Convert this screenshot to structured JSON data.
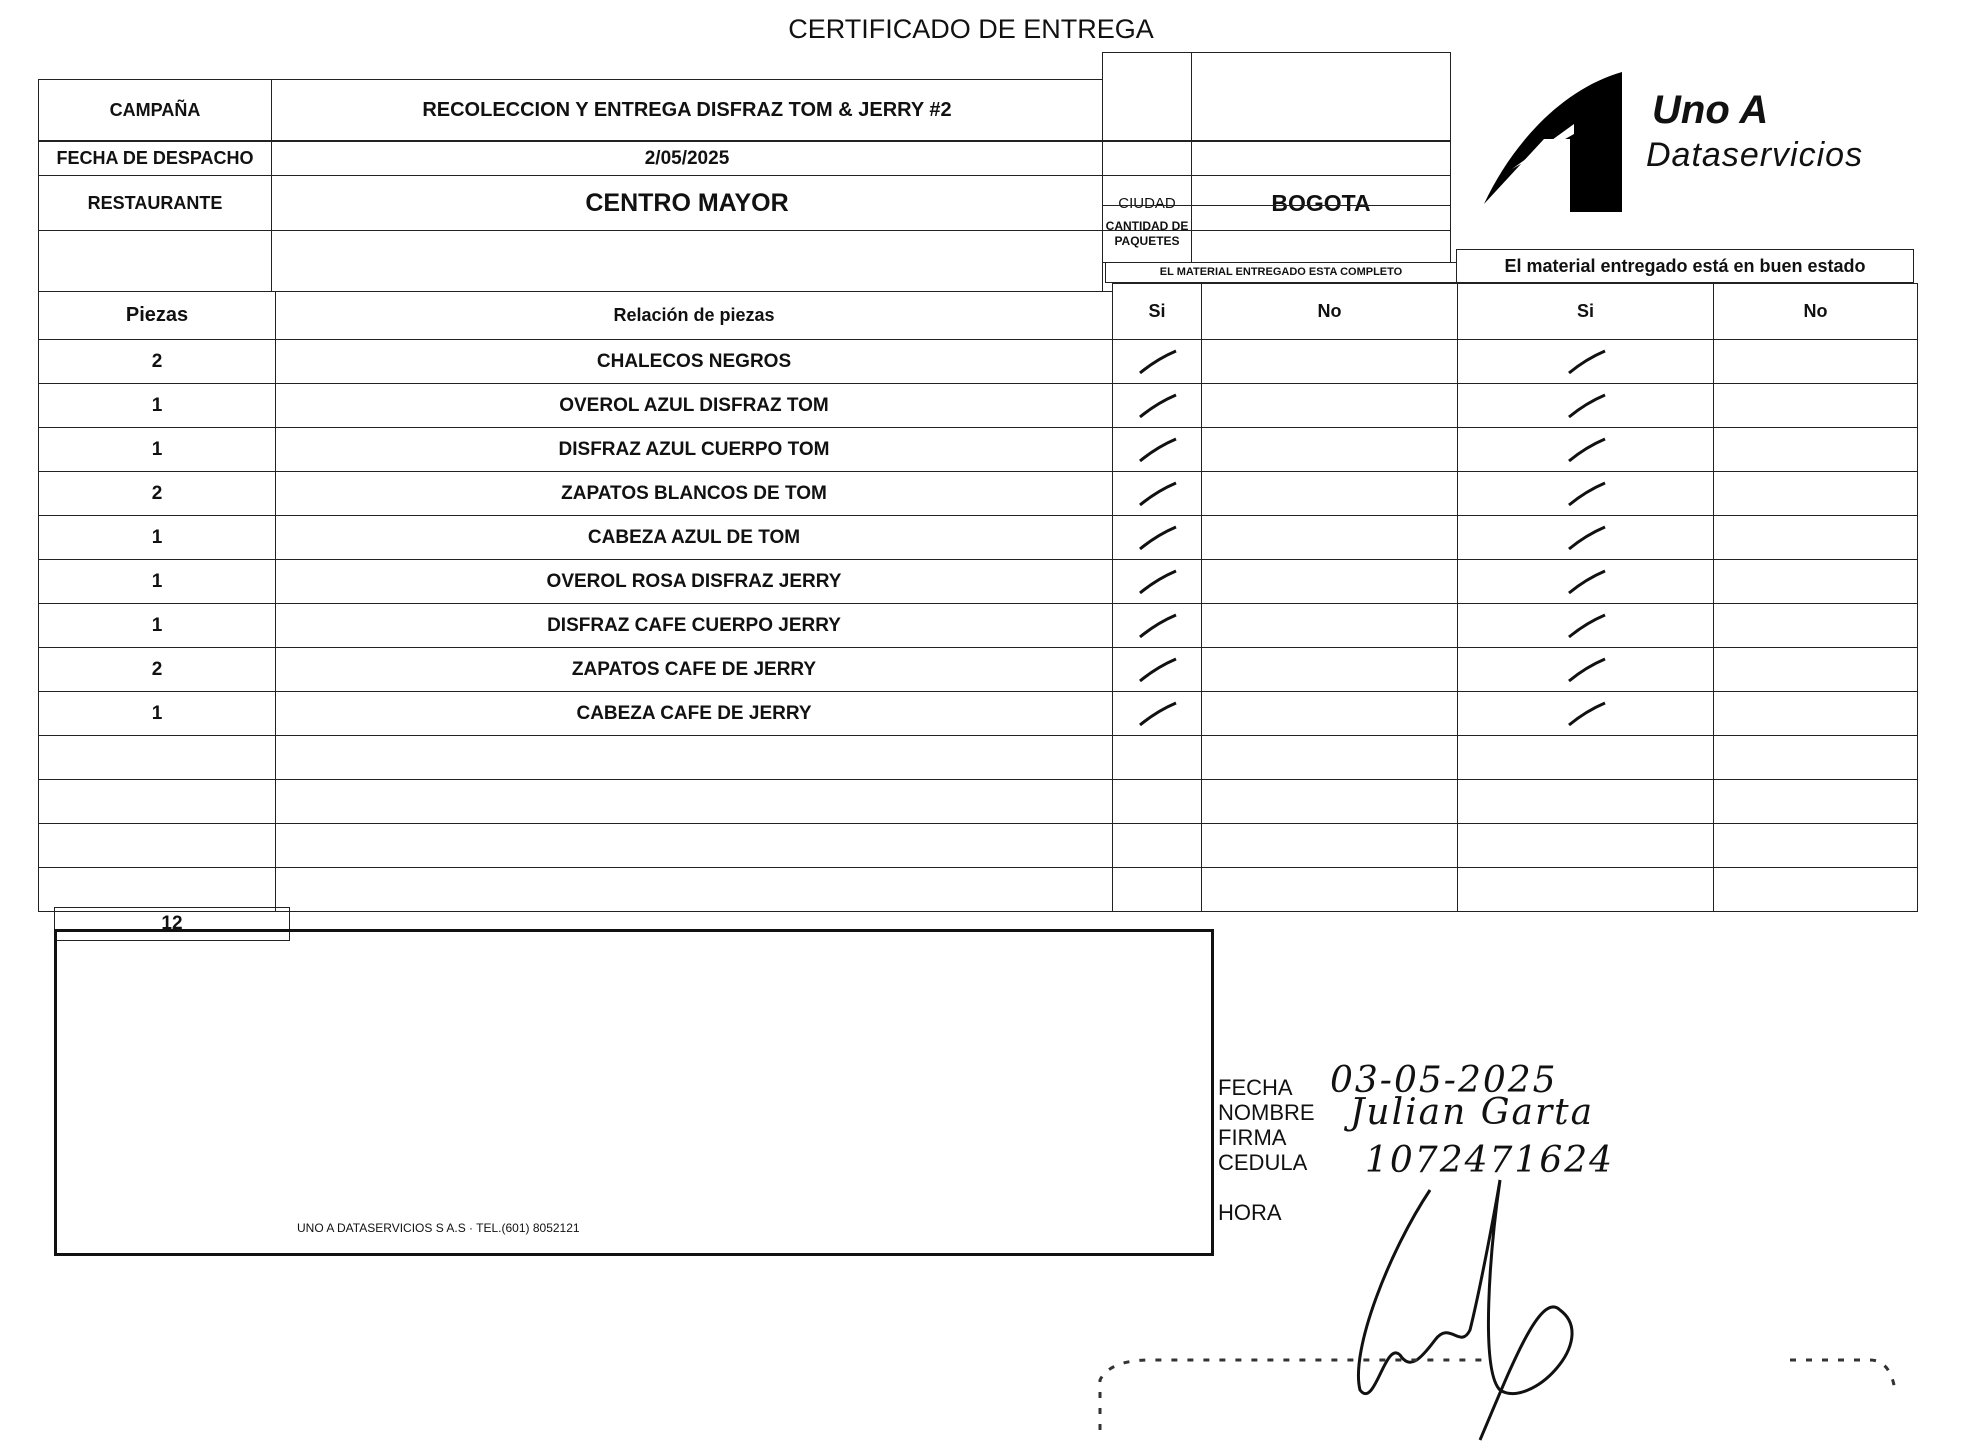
{
  "title": "CERTIFICADO DE ENTREGA",
  "header": {
    "campaign_label": "CAMPAÑA",
    "campaign_value": "RECOLECCION Y ENTREGA DISFRAZ TOM & JERRY #2",
    "dispatch_date_label": "FECHA DE DESPACHO",
    "dispatch_date_value": "2/05/2025",
    "restaurant_label": "RESTAURANTE",
    "restaurant_value": "CENTRO MAYOR",
    "city_label": "CIUDAD",
    "city_value": "BOGOTA",
    "packages_label": "CANTIDAD DE PAQUETES",
    "packages_value": ""
  },
  "logo": {
    "line1": "Uno A",
    "line2": "Dataservicios",
    "color": "#000000"
  },
  "table": {
    "pieces_header": "Piezas",
    "relation_header": "Relación de piezas",
    "complete_header": "EL MATERIAL ENTREGADO ESTA COMPLETO",
    "condition_header": "El material entregado está en buen estado",
    "yes": "Si",
    "no": "No",
    "rows": [
      {
        "qty": "2",
        "item": "CHALECOS NEGROS",
        "complete": "Si",
        "good": "Si"
      },
      {
        "qty": "1",
        "item": "OVEROL AZUL DISFRAZ TOM",
        "complete": "Si",
        "good": "Si"
      },
      {
        "qty": "1",
        "item": "DISFRAZ AZUL CUERPO TOM",
        "complete": "Si",
        "good": "Si"
      },
      {
        "qty": "2",
        "item": "ZAPATOS BLANCOS DE TOM",
        "complete": "Si",
        "good": "Si"
      },
      {
        "qty": "1",
        "item": "CABEZA AZUL DE TOM",
        "complete": "Si",
        "good": "Si"
      },
      {
        "qty": "1",
        "item": "OVEROL ROSA DISFRAZ JERRY",
        "complete": "Si",
        "good": "Si"
      },
      {
        "qty": "1",
        "item": "DISFRAZ CAFE CUERPO JERRY",
        "complete": "Si",
        "good": "Si"
      },
      {
        "qty": "2",
        "item": "ZAPATOS CAFE DE JERRY",
        "complete": "Si",
        "good": "Si"
      },
      {
        "qty": "1",
        "item": "CABEZA CAFE DE JERRY",
        "complete": "Si",
        "good": "Si"
      }
    ],
    "total": "12"
  },
  "footer": {
    "company": "UNO A DATASERVICIOS S A.S · TEL.(601) 8052121"
  },
  "receipt": {
    "date_label": "FECHA",
    "date_value": "03-05-2025",
    "name_label": "NOMBRE",
    "name_value": "Julian Garta",
    "signature_label": "FIRMA",
    "id_label": "CEDULA",
    "id_value": "1072471624",
    "time_label": "HORA"
  }
}
